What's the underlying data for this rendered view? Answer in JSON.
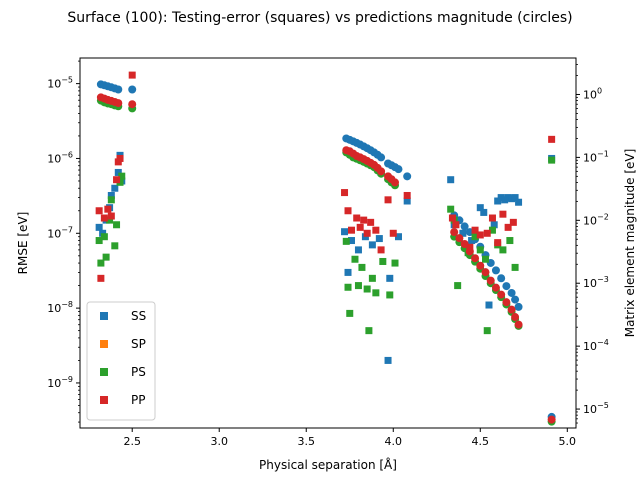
{
  "chart_data": {
    "type": "scatter",
    "title": "Surface (100): Testing-error (squares) vs predictions magnitude (circles)",
    "xlabel": "Physical separation [Å]",
    "ylabel": "RMSE [eV]",
    "y2label": "Matrix element magnitude [eV]",
    "xlim": [
      2.2,
      5.05
    ],
    "ylim": [
      2.5e-10,
      2.2e-05
    ],
    "y2lim": [
      5e-06,
      3.8
    ],
    "yscale": "log",
    "y2scale": "log",
    "xticks": [
      2.5,
      3.0,
      3.5,
      4.0,
      4.5,
      5.0
    ],
    "xtick_labels": [
      "2.5",
      "3.0",
      "3.5",
      "4.0",
      "4.5",
      "5.0"
    ],
    "yticks": [
      1e-09,
      1e-08,
      1e-07,
      1e-06,
      1e-05
    ],
    "ytick_labels": [
      {
        "base": "10",
        "exp": "−9"
      },
      {
        "base": "10",
        "exp": "−8"
      },
      {
        "base": "10",
        "exp": "−7"
      },
      {
        "base": "10",
        "exp": "−6"
      },
      {
        "base": "10",
        "exp": "−5"
      }
    ],
    "y2ticks": [
      1e-05,
      0.0001,
      0.001,
      0.01,
      0.1,
      1
    ],
    "y2tick_labels": [
      {
        "base": "10",
        "exp": "−5"
      },
      {
        "base": "10",
        "exp": "−4"
      },
      {
        "base": "10",
        "exp": "−3"
      },
      {
        "base": "10",
        "exp": "−2"
      },
      {
        "base": "10",
        "exp": "−1"
      },
      {
        "base": "10",
        "exp": "0"
      }
    ],
    "grid": false,
    "legend_position": "lower-left",
    "series": [
      {
        "name": "SS",
        "color": "#1f77b4",
        "marker": "square",
        "axis": "left",
        "points": [
          [
            2.31,
            1.2e-07
          ],
          [
            2.33,
            1e-07
          ],
          [
            2.35,
            1.5e-07
          ],
          [
            2.37,
            2.2e-07
          ],
          [
            2.38,
            3.2e-07
          ],
          [
            2.4,
            4e-07
          ],
          [
            2.42,
            6.5e-07
          ],
          [
            2.43,
            1.1e-06
          ],
          [
            2.44,
            5e-07
          ],
          [
            3.72,
            1.05e-07
          ],
          [
            3.74,
            3e-08
          ],
          [
            3.76,
            8e-08
          ],
          [
            3.8,
            6e-08
          ],
          [
            3.84,
            9e-08
          ],
          [
            3.88,
            7e-08
          ],
          [
            3.92,
            8.5e-08
          ],
          [
            3.97,
            2e-09
          ],
          [
            3.98,
            2.5e-08
          ],
          [
            4.03,
            9e-08
          ],
          [
            4.08,
            2.7e-07
          ],
          [
            4.33,
            5.2e-07
          ],
          [
            4.35,
            1.3e-07
          ],
          [
            4.4,
            1e-07
          ],
          [
            4.45,
            8e-08
          ],
          [
            4.5,
            2.2e-07
          ],
          [
            4.52,
            1.9e-07
          ],
          [
            4.55,
            1.1e-08
          ],
          [
            4.58,
            1.3e-07
          ],
          [
            4.6,
            2.7e-07
          ],
          [
            4.62,
            3e-07
          ],
          [
            4.64,
            2.8e-07
          ],
          [
            4.66,
            3e-07
          ],
          [
            4.68,
            2.9e-07
          ],
          [
            4.7,
            3e-07
          ],
          [
            4.72,
            2.6e-07
          ],
          [
            4.91,
            1e-06
          ]
        ]
      },
      {
        "name": "SS",
        "color": "#1f77b4",
        "marker": "circle",
        "axis": "right",
        "points": [
          [
            2.32,
            1.45
          ],
          [
            2.34,
            1.4
          ],
          [
            2.36,
            1.35
          ],
          [
            2.38,
            1.3
          ],
          [
            2.4,
            1.25
          ],
          [
            2.42,
            1.2
          ],
          [
            2.5,
            1.2
          ],
          [
            3.73,
            0.2
          ],
          [
            3.75,
            0.19
          ],
          [
            3.77,
            0.18
          ],
          [
            3.79,
            0.17
          ],
          [
            3.81,
            0.16
          ],
          [
            3.83,
            0.15
          ],
          [
            3.85,
            0.14
          ],
          [
            3.87,
            0.13
          ],
          [
            3.89,
            0.12
          ],
          [
            3.91,
            0.11
          ],
          [
            3.93,
            0.1
          ],
          [
            3.97,
            0.08
          ],
          [
            3.99,
            0.075
          ],
          [
            4.01,
            0.07
          ],
          [
            4.03,
            0.065
          ],
          [
            4.08,
            0.05
          ],
          [
            4.35,
            0.012
          ],
          [
            4.38,
            0.01
          ],
          [
            4.41,
            0.008
          ],
          [
            4.44,
            0.0065
          ],
          [
            4.47,
            0.005
          ],
          [
            4.5,
            0.0038
          ],
          [
            4.53,
            0.0028
          ],
          [
            4.56,
            0.0021
          ],
          [
            4.59,
            0.0016
          ],
          [
            4.62,
            0.0012
          ],
          [
            4.65,
            0.0009
          ],
          [
            4.68,
            0.0007
          ],
          [
            4.7,
            0.00055
          ],
          [
            4.72,
            0.00042
          ],
          [
            4.91,
            7.5e-06
          ]
        ]
      },
      {
        "name": "SP",
        "color": "#ff7f0e",
        "marker": "square",
        "axis": "left",
        "points": []
      },
      {
        "name": "PS",
        "color": "#2ca02c",
        "marker": "square",
        "axis": "left",
        "points": [
          [
            2.31,
            8e-08
          ],
          [
            2.32,
            4e-08
          ],
          [
            2.34,
            9e-08
          ],
          [
            2.35,
            4.8e-08
          ],
          [
            2.37,
            1.5e-07
          ],
          [
            2.38,
            2.8e-07
          ],
          [
            2.4,
            6.8e-08
          ],
          [
            2.41,
            1.3e-07
          ],
          [
            2.43,
            4.8e-07
          ],
          [
            2.44,
            5.8e-07
          ],
          [
            3.73,
            7.8e-08
          ],
          [
            3.74,
            1.9e-08
          ],
          [
            3.75,
            8.5e-09
          ],
          [
            3.78,
            4.5e-08
          ],
          [
            3.8,
            2e-08
          ],
          [
            3.82,
            3.5e-08
          ],
          [
            3.85,
            1.8e-08
          ],
          [
            3.86,
            5e-09
          ],
          [
            3.88,
            2.5e-08
          ],
          [
            3.9,
            1.6e-08
          ],
          [
            3.94,
            4.2e-08
          ],
          [
            3.98,
            1.5e-08
          ],
          [
            4.01,
            4e-08
          ],
          [
            4.33,
            2.1e-07
          ],
          [
            4.35,
            1.5e-07
          ],
          [
            4.37,
            2e-08
          ],
          [
            4.43,
            5.5e-08
          ],
          [
            4.47,
            9e-08
          ],
          [
            4.5,
            6e-08
          ],
          [
            4.53,
            4.5e-08
          ],
          [
            4.54,
            5e-09
          ],
          [
            4.57,
            1.1e-07
          ],
          [
            4.6,
            7e-08
          ],
          [
            4.63,
            6e-08
          ],
          [
            4.67,
            8e-08
          ],
          [
            4.7,
            3.5e-08
          ],
          [
            4.91,
            9.5e-07
          ]
        ]
      },
      {
        "name": "PS",
        "color": "#2ca02c",
        "marker": "circle",
        "axis": "right",
        "points": [
          [
            2.32,
            0.8
          ],
          [
            2.34,
            0.75
          ],
          [
            2.36,
            0.72
          ],
          [
            2.38,
            0.7
          ],
          [
            2.4,
            0.67
          ],
          [
            2.42,
            0.65
          ],
          [
            2.5,
            0.6
          ],
          [
            3.73,
            0.12
          ],
          [
            3.75,
            0.11
          ],
          [
            3.77,
            0.1
          ],
          [
            3.79,
            0.095
          ],
          [
            3.81,
            0.09
          ],
          [
            3.83,
            0.085
          ],
          [
            3.85,
            0.08
          ],
          [
            3.87,
            0.075
          ],
          [
            3.89,
            0.07
          ],
          [
            3.91,
            0.062
          ],
          [
            3.93,
            0.055
          ],
          [
            3.97,
            0.045
          ],
          [
            3.99,
            0.04
          ],
          [
            4.01,
            0.036
          ],
          [
            4.35,
            0.0055
          ],
          [
            4.38,
            0.0045
          ],
          [
            4.41,
            0.0036
          ],
          [
            4.44,
            0.0028
          ],
          [
            4.47,
            0.0022
          ],
          [
            4.5,
            0.0017
          ],
          [
            4.53,
            0.0013
          ],
          [
            4.56,
            0.001
          ],
          [
            4.59,
            0.00078
          ],
          [
            4.62,
            0.0006
          ],
          [
            4.65,
            0.00046
          ],
          [
            4.68,
            0.00035
          ],
          [
            4.7,
            0.00027
          ],
          [
            4.72,
            0.00021
          ],
          [
            4.91,
            6.3e-06
          ]
        ]
      },
      {
        "name": "PP",
        "color": "#d62728",
        "marker": "square",
        "axis": "left",
        "points": [
          [
            2.31,
            2e-07
          ],
          [
            2.32,
            2.5e-08
          ],
          [
            2.34,
            1.6e-07
          ],
          [
            2.36,
            2.1e-07
          ],
          [
            2.38,
            1.7e-07
          ],
          [
            2.41,
            5.2e-07
          ],
          [
            2.42,
            9e-07
          ],
          [
            2.43,
            1e-06
          ],
          [
            2.5,
            1.3e-05
          ],
          [
            3.72,
            3.5e-07
          ],
          [
            3.74,
            2e-07
          ],
          [
            3.76,
            1.1e-07
          ],
          [
            3.79,
            1.6e-07
          ],
          [
            3.81,
            1.2e-07
          ],
          [
            3.83,
            1.5e-07
          ],
          [
            3.85,
            1e-07
          ],
          [
            3.87,
            1.4e-07
          ],
          [
            3.9,
            1.1e-07
          ],
          [
            3.93,
            6e-08
          ],
          [
            3.97,
            2.8e-07
          ],
          [
            4.0,
            1e-07
          ],
          [
            4.08,
            3.2e-07
          ],
          [
            4.34,
            1.6e-07
          ],
          [
            4.36,
            1.3e-07
          ],
          [
            4.44,
            6.5e-08
          ],
          [
            4.47,
            1.1e-07
          ],
          [
            4.5,
            9.5e-08
          ],
          [
            4.54,
            1e-07
          ],
          [
            4.57,
            1.6e-07
          ],
          [
            4.6,
            7.5e-08
          ],
          [
            4.63,
            1.8e-07
          ],
          [
            4.66,
            1.2e-07
          ],
          [
            4.69,
            1.4e-07
          ],
          [
            4.91,
            1.8e-06
          ]
        ]
      },
      {
        "name": "PP",
        "color": "#d62728",
        "marker": "circle",
        "axis": "right",
        "points": [
          [
            2.32,
            0.9
          ],
          [
            2.34,
            0.86
          ],
          [
            2.36,
            0.82
          ],
          [
            2.38,
            0.79
          ],
          [
            2.4,
            0.76
          ],
          [
            2.42,
            0.73
          ],
          [
            2.5,
            0.7
          ],
          [
            3.73,
            0.13
          ],
          [
            3.75,
            0.125
          ],
          [
            3.77,
            0.115
          ],
          [
            3.79,
            0.105
          ],
          [
            3.81,
            0.1
          ],
          [
            3.83,
            0.094
          ],
          [
            3.85,
            0.088
          ],
          [
            3.87,
            0.082
          ],
          [
            3.89,
            0.076
          ],
          [
            3.91,
            0.068
          ],
          [
            3.93,
            0.06
          ],
          [
            3.97,
            0.05
          ],
          [
            3.99,
            0.045
          ],
          [
            4.01,
            0.04
          ],
          [
            4.35,
            0.0065
          ],
          [
            4.38,
            0.0052
          ],
          [
            4.41,
            0.0042
          ],
          [
            4.44,
            0.0032
          ],
          [
            4.47,
            0.0025
          ],
          [
            4.5,
            0.0019
          ],
          [
            4.53,
            0.0015
          ],
          [
            4.56,
            0.0011
          ],
          [
            4.59,
            0.00085
          ],
          [
            4.62,
            0.00066
          ],
          [
            4.65,
            0.0005
          ],
          [
            4.68,
            0.00038
          ],
          [
            4.7,
            0.00029
          ],
          [
            4.72,
            0.00022
          ],
          [
            4.91,
            6.8e-06
          ]
        ]
      }
    ],
    "legend": [
      "SS",
      "SP",
      "PS",
      "PP"
    ],
    "legend_colors": [
      "#1f77b4",
      "#ff7f0e",
      "#2ca02c",
      "#d62728"
    ]
  }
}
